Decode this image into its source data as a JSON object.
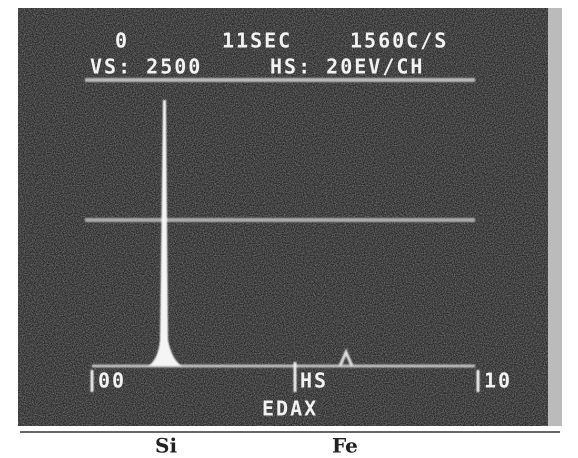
{
  "screen": {
    "header": {
      "line1": {
        "left": "0",
        "middle": "11SEC",
        "right": "1560C/S"
      },
      "line2": {
        "left": "VS: 2500",
        "right": "HS: 20EV/CH"
      }
    },
    "axis": {
      "left": "00",
      "middle": "HS",
      "right": "10"
    },
    "footer": "EDAX"
  },
  "captions": {
    "left": "Si",
    "right": "Fe"
  }
}
